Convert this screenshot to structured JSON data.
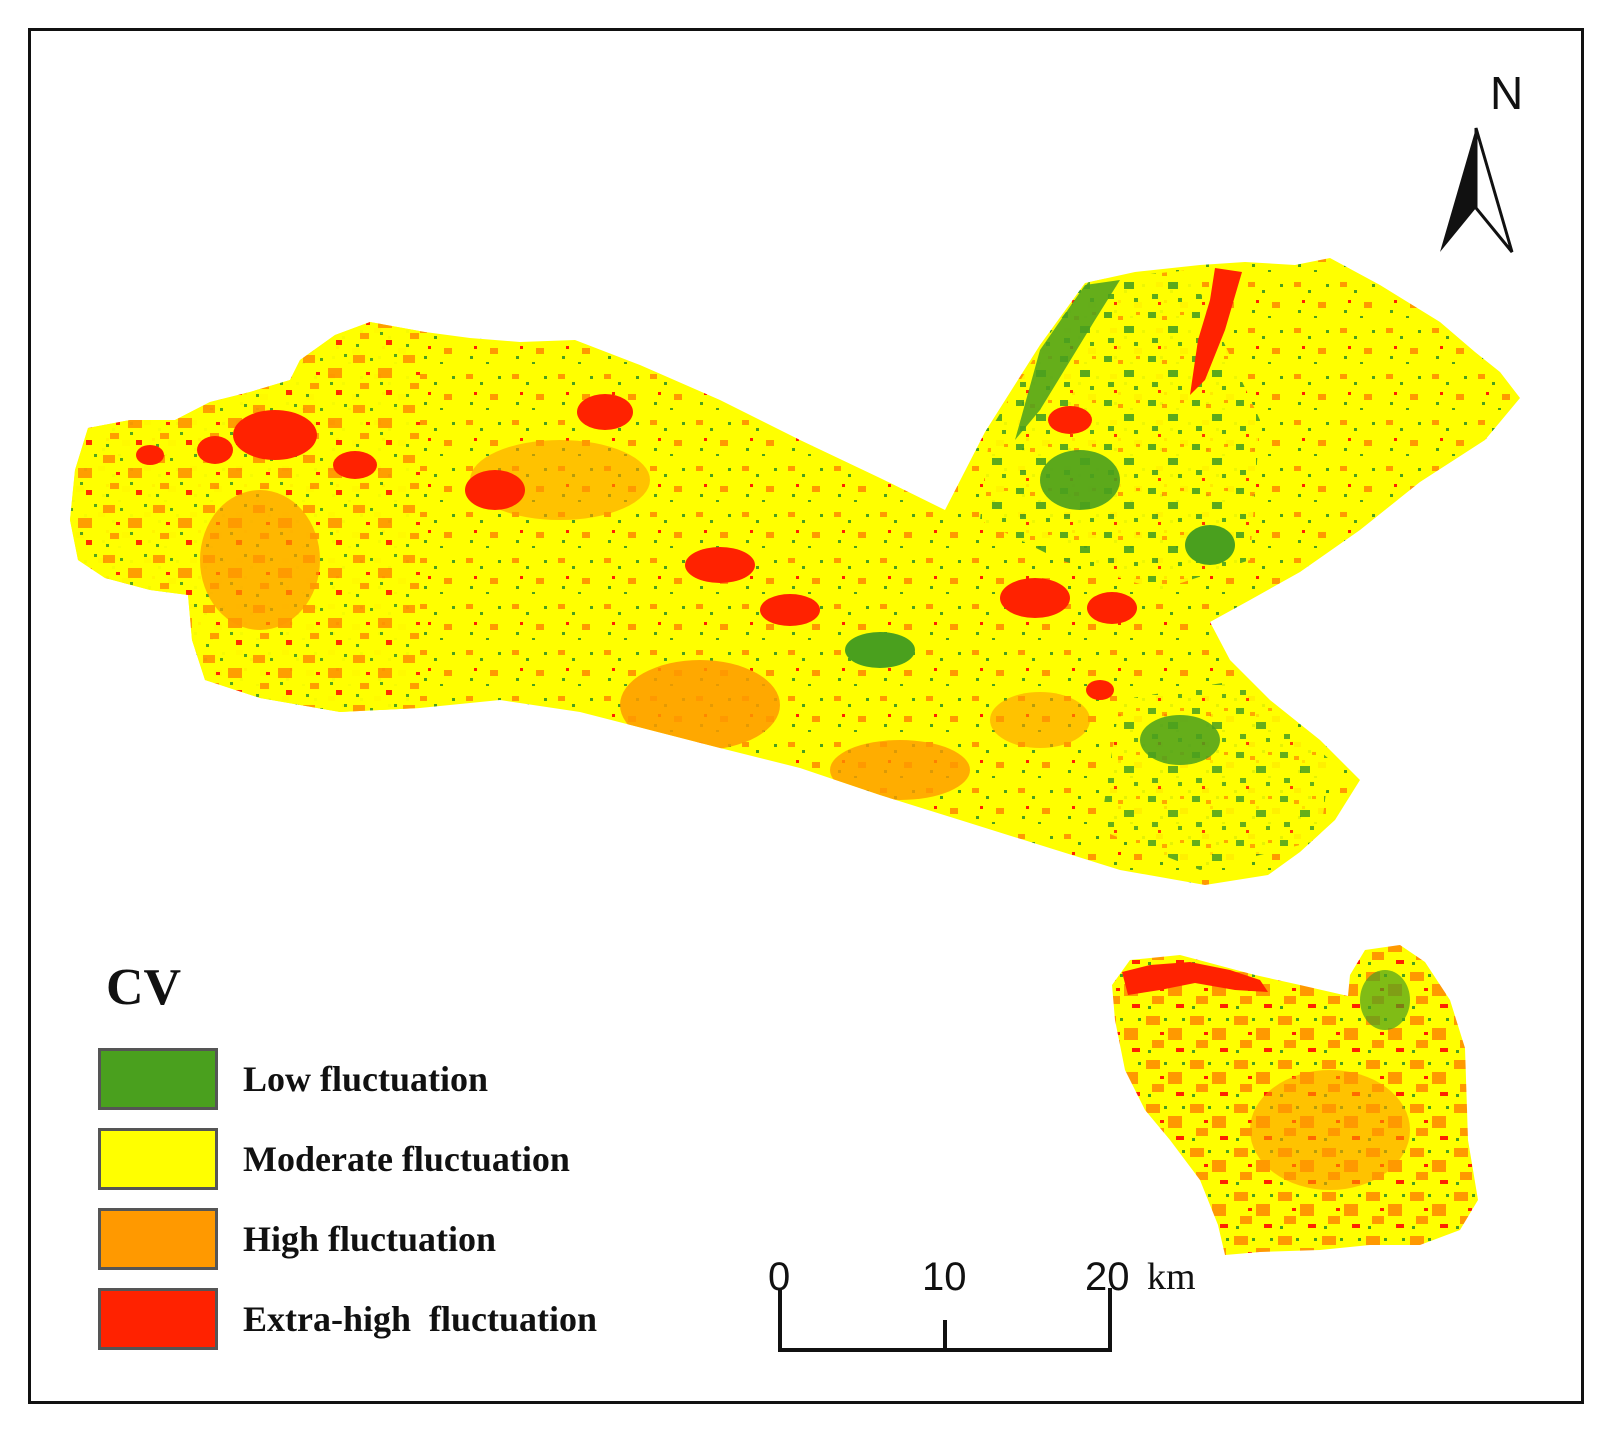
{
  "legend": {
    "title": "CV",
    "items": [
      {
        "label": "Low fluctuation",
        "color": "#4aa01e"
      },
      {
        "label": "Moderate fluctuation",
        "color": "#ffff00"
      },
      {
        "label": "High fluctuation",
        "color": "#ff9900"
      },
      {
        "label": "Extra-high  fluctuation",
        "color": "#ff2200"
      }
    ]
  },
  "north_arrow": {
    "label": "N"
  },
  "scale_bar": {
    "ticks": [
      "0",
      "10",
      "20"
    ],
    "unit": "km"
  }
}
